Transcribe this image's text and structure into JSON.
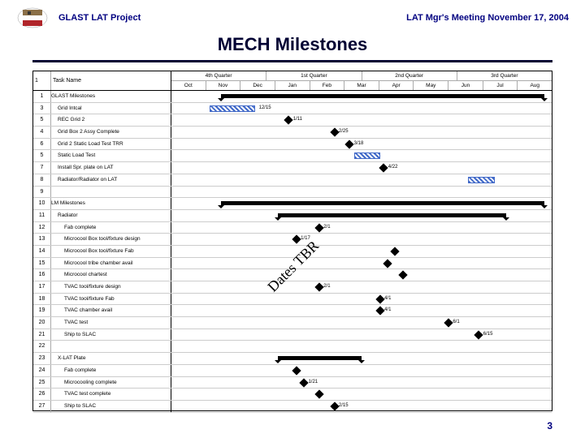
{
  "header": {
    "left": "GLAST LAT Project",
    "right": "LAT Mgr's Meeting November 17, 2004",
    "title": "MECH Milestones",
    "logo_colors": {
      "top": "#8b6f47",
      "mid": "#ffffff",
      "bot": "#b0252a"
    }
  },
  "page_number": "3",
  "timeline": {
    "task_header_id": "1",
    "task_header_name": "Task Name",
    "quarter_labels": [
      "4th Quarter",
      "1st Quarter",
      "2nd Quarter",
      "3rd Quarter"
    ],
    "month_labels": [
      "Oct",
      "Nov",
      "Dec",
      "Jan",
      "Feb",
      "Mar",
      "Apr",
      "May",
      "Jun",
      "Jul",
      "Aug"
    ]
  },
  "annotation": "Dates TBR",
  "colors": {
    "text": "#000033",
    "rule": "#000033",
    "hatch": "#4169c8",
    "border": "#000000"
  },
  "rows": [
    {
      "id": "1",
      "name": "GLAST Milestones",
      "indent": 0,
      "type": "summary",
      "start": 13,
      "end": 98
    },
    {
      "id": "3",
      "name": "Grid Intcal",
      "indent": 1,
      "type": "hatch",
      "start": 10,
      "end": 22,
      "label": "12/15",
      "labelx": 23
    },
    {
      "id": "5",
      "name": "REC Grid 2",
      "indent": 1,
      "type": "milestone",
      "x": 30,
      "label": "1/11",
      "labelx": 32
    },
    {
      "id": "4",
      "name": "Grid Box 2 Assy Complete",
      "indent": 1,
      "type": "milestone",
      "x": 42,
      "label": "2/25",
      "labelx": 44
    },
    {
      "id": "6",
      "name": "Grid 2 Static Load Test TRR",
      "indent": 1,
      "type": "milestone",
      "x": 46,
      "label": "3/18",
      "labelx": 48
    },
    {
      "id": "5",
      "name": "Static Load Test",
      "indent": 1,
      "type": "hatch",
      "start": 48,
      "end": 55,
      "label": "",
      "labelx": 0
    },
    {
      "id": "7",
      "name": "Install Spr. plate on LAT",
      "indent": 1,
      "type": "milestone",
      "x": 55,
      "label": "4/22",
      "labelx": 57
    },
    {
      "id": "8",
      "name": "Radiator/Radiator on LAT",
      "indent": 1,
      "type": "hatch",
      "start": 78,
      "end": 85,
      "label": "",
      "labelx": 0
    },
    {
      "id": "9",
      "name": "",
      "indent": 0,
      "type": "blank"
    },
    {
      "id": "10",
      "name": "LM Milestones",
      "indent": 0,
      "type": "summary",
      "start": 13,
      "end": 98
    },
    {
      "id": "11",
      "name": "Radiator",
      "indent": 1,
      "type": "summary",
      "start": 28,
      "end": 88
    },
    {
      "id": "12",
      "name": "Fab complete",
      "indent": 2,
      "type": "milestone",
      "x": 38,
      "label": "2/1",
      "labelx": 40
    },
    {
      "id": "13",
      "name": "Microcool Box tool/fixture design",
      "indent": 2,
      "type": "milestone",
      "x": 32,
      "label": "1/17",
      "labelx": 34
    },
    {
      "id": "14",
      "name": "Microcool Box tool/fixture Fab",
      "indent": 2,
      "type": "milestone",
      "x": 58,
      "label": "",
      "labelx": 0
    },
    {
      "id": "15",
      "name": "Microcool tribe chamber avail",
      "indent": 2,
      "type": "milestone",
      "x": 56,
      "label": "",
      "labelx": 0
    },
    {
      "id": "16",
      "name": "Microcool chartest",
      "indent": 2,
      "type": "milestone",
      "x": 60,
      "label": "",
      "labelx": 0
    },
    {
      "id": "17",
      "name": "TVAC tool/fixture design",
      "indent": 2,
      "type": "milestone",
      "x": 38,
      "label": "2/1",
      "labelx": 40
    },
    {
      "id": "18",
      "name": "TVAC tool/fixture Fab",
      "indent": 2,
      "type": "milestone",
      "x": 54,
      "label": "4/1",
      "labelx": 56
    },
    {
      "id": "19",
      "name": "TVAC chamber avail",
      "indent": 2,
      "type": "milestone",
      "x": 54,
      "label": "4/1",
      "labelx": 56
    },
    {
      "id": "20",
      "name": "TVAC test",
      "indent": 2,
      "type": "milestone",
      "x": 72,
      "label": "6/1",
      "labelx": 74
    },
    {
      "id": "21",
      "name": "Ship to SLAC",
      "indent": 2,
      "type": "milestone",
      "x": 80,
      "label": "6/15",
      "labelx": 82
    },
    {
      "id": "22",
      "name": "",
      "indent": 0,
      "type": "blank"
    },
    {
      "id": "23",
      "name": "X-LAT Plate",
      "indent": 1,
      "type": "summary",
      "start": 28,
      "end": 50
    },
    {
      "id": "24",
      "name": "Fab complete",
      "indent": 2,
      "type": "milestone",
      "x": 32,
      "label": "",
      "labelx": 0
    },
    {
      "id": "25",
      "name": "Microcooling complete",
      "indent": 2,
      "type": "milestone",
      "x": 34,
      "label": "1/21",
      "labelx": 36
    },
    {
      "id": "26",
      "name": "TVAC test complete",
      "indent": 2,
      "type": "milestone",
      "x": 38,
      "label": "",
      "labelx": 0
    },
    {
      "id": "27",
      "name": "Ship to SLAC",
      "indent": 2,
      "type": "milestone",
      "x": 42,
      "label": "2/15",
      "labelx": 44
    }
  ]
}
